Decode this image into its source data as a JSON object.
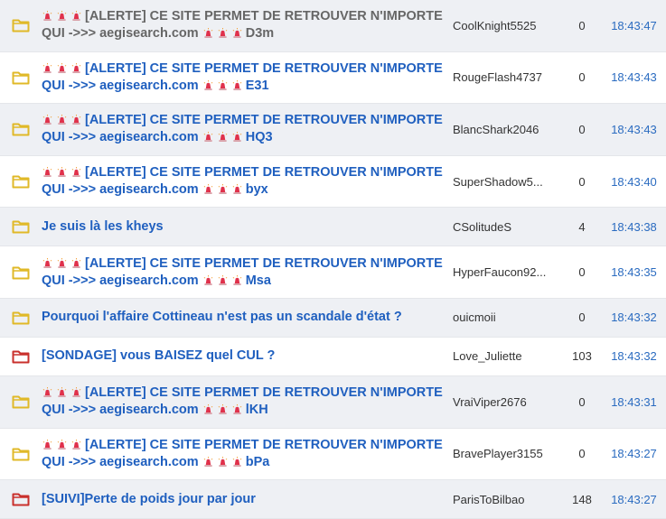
{
  "colors": {
    "folder_normal": "#e0b928",
    "folder_hot": "#c9302c",
    "link": "#1f5fbf",
    "visited": "#666666",
    "time": "#2a6bc0"
  },
  "topics": [
    {
      "icon": "folder-icon",
      "hot": false,
      "visited": true,
      "sirens": true,
      "title": "[ALERTE] CE SITE PERMET DE RETROUVER N'IMPORTE",
      "title2": "QUI ->>> aegisearch.com",
      "suffix": "D3m",
      "author": "CoolKnight5525",
      "replies": "0",
      "time": "18:43:47"
    },
    {
      "icon": "folder-icon",
      "hot": false,
      "visited": false,
      "sirens": true,
      "title": "[ALERTE] CE SITE PERMET DE RETROUVER N'IMPORTE",
      "title2": "QUI ->>> aegisearch.com",
      "suffix": "E31",
      "author": "RougeFlash4737",
      "replies": "0",
      "time": "18:43:43"
    },
    {
      "icon": "folder-icon",
      "hot": false,
      "visited": false,
      "sirens": true,
      "title": "[ALERTE] CE SITE PERMET DE RETROUVER N'IMPORTE",
      "title2": "QUI ->>> aegisearch.com",
      "suffix": "HQ3",
      "author": "BlancShark2046",
      "replies": "0",
      "time": "18:43:43"
    },
    {
      "icon": "folder-icon",
      "hot": false,
      "visited": false,
      "sirens": true,
      "title": "[ALERTE] CE SITE PERMET DE RETROUVER N'IMPORTE",
      "title2": "QUI ->>> aegisearch.com",
      "suffix": "byx",
      "author": "SuperShadow5...",
      "replies": "0",
      "time": "18:43:40"
    },
    {
      "icon": "folder-icon",
      "hot": false,
      "visited": false,
      "sirens": false,
      "title": "Je suis là les kheys",
      "author": "CSolitudeS",
      "replies": "4",
      "time": "18:43:38"
    },
    {
      "icon": "folder-icon",
      "hot": false,
      "visited": false,
      "sirens": true,
      "title": "[ALERTE] CE SITE PERMET DE RETROUVER N'IMPORTE",
      "title2": "QUI ->>> aegisearch.com",
      "suffix": "Msa",
      "author": "HyperFaucon92...",
      "replies": "0",
      "time": "18:43:35"
    },
    {
      "icon": "folder-icon",
      "hot": false,
      "visited": false,
      "sirens": false,
      "title": "Pourquoi l'affaire Cottineau n'est pas un scandale d'état ?",
      "author": "ouicmoii",
      "replies": "0",
      "time": "18:43:32"
    },
    {
      "icon": "hot-folder-icon",
      "hot": true,
      "visited": false,
      "sirens": false,
      "title": "[SONDAGE] vous BAISEZ quel CUL ?",
      "author": "Love_Juliette",
      "replies": "103",
      "time": "18:43:32"
    },
    {
      "icon": "folder-icon",
      "hot": false,
      "visited": false,
      "sirens": true,
      "title": "[ALERTE] CE SITE PERMET DE RETROUVER N'IMPORTE",
      "title2": "QUI ->>> aegisearch.com",
      "suffix": "lKH",
      "author": "VraiViper2676",
      "replies": "0",
      "time": "18:43:31"
    },
    {
      "icon": "folder-icon",
      "hot": false,
      "visited": false,
      "sirens": true,
      "title": "[ALERTE] CE SITE PERMET DE RETROUVER N'IMPORTE",
      "title2": "QUI ->>> aegisearch.com",
      "suffix": "bPa",
      "author": "BravePlayer3155",
      "replies": "0",
      "time": "18:43:27"
    },
    {
      "icon": "hot-folder-icon",
      "hot": true,
      "visited": false,
      "sirens": false,
      "title": "[SUIVI]Perte de poids jour par jour",
      "author": "ParisToBilbao",
      "replies": "148",
      "time": "18:43:27"
    }
  ]
}
